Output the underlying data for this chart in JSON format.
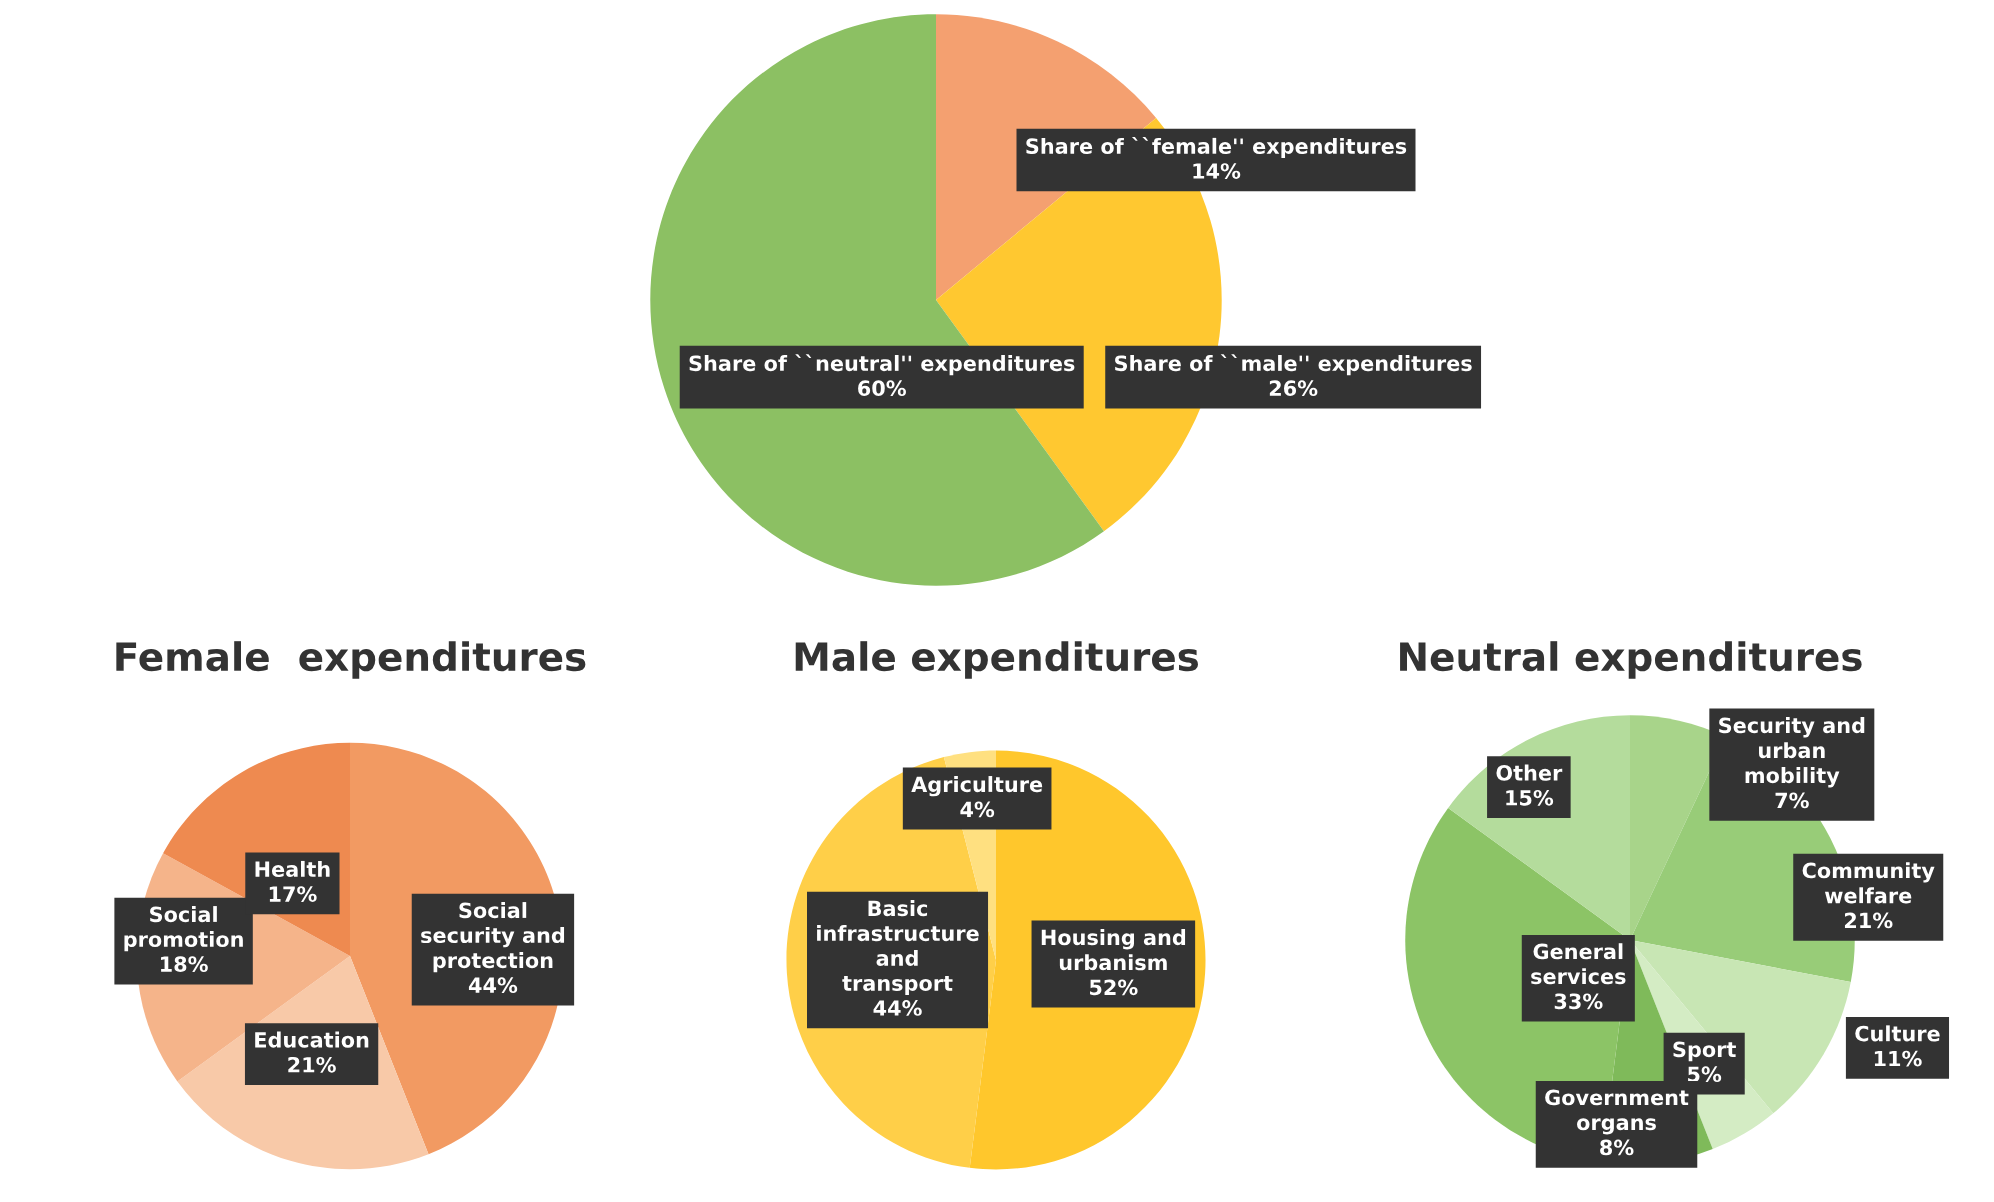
{
  "chart_data": [
    {
      "type": "pie",
      "categories": [
        "Share of ``female'' expenditures",
        "Share of ``male'' expenditures",
        "Share of ``neutral'' expenditures"
      ],
      "values": [
        14,
        26,
        60
      ],
      "value_labels": [
        "14%",
        "26%",
        "60%"
      ],
      "colors": [
        "#f4a070",
        "#ffc830",
        "#8cc063"
      ]
    },
    {
      "type": "pie",
      "title": "Female  expenditures",
      "categories": [
        "Social security and protection",
        "Education",
        "Social promotion",
        "Health"
      ],
      "values": [
        44,
        21,
        18,
        17
      ],
      "value_labels": [
        "44%",
        "21%",
        "18%",
        "17%"
      ],
      "colors": [
        "#f29a62",
        "#f8c9a8",
        "#f5b48a",
        "#ee8a50"
      ]
    },
    {
      "type": "pie",
      "title": "Male expenditures",
      "categories": [
        "Housing and urbanism",
        "Basic infrastructure and transport",
        "Agriculture"
      ],
      "values": [
        52,
        44,
        4
      ],
      "value_labels": [
        "52%",
        "44%",
        "4%"
      ],
      "colors": [
        "#ffc72c",
        "#ffcf48",
        "#ffe080"
      ]
    },
    {
      "type": "pie",
      "title": "Neutral expenditures",
      "categories": [
        "Security and urban mobility",
        "Community welfare",
        "Culture",
        "Sport",
        "Government organs",
        "General services",
        "Other"
      ],
      "values": [
        7,
        21,
        11,
        5,
        8,
        33,
        15
      ],
      "value_labels": [
        "7%",
        "21%",
        "11%",
        "5%",
        "8%",
        "33%",
        "15%"
      ],
      "colors": [
        "#a8d48a",
        "#98cc78",
        "#c8e6b4",
        "#d4ecc4",
        "#7fba5a",
        "#8cc466",
        "#b4dc9c"
      ]
    }
  ]
}
